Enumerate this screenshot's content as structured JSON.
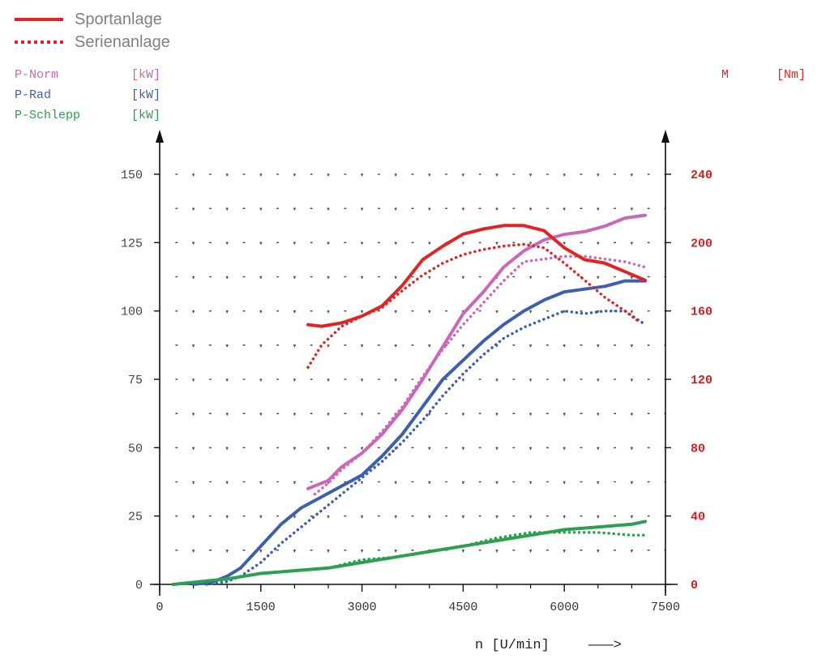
{
  "legend": {
    "solid_label": "Sportanlage",
    "dotted_label": "Serienanlage"
  },
  "labels": {
    "p_norm": "P-Norm",
    "p_norm_unit": "[kW]",
    "p_rad": "P-Rad",
    "p_rad_unit": "[kW]",
    "p_schlepp": "P-Schlepp",
    "p_schlepp_unit": "[kW]",
    "m": "M",
    "m_unit": "[Nm]",
    "xlabel": "n [U/min]",
    "xarrow": "———>"
  },
  "colors": {
    "p_norm": "#cc66bb",
    "p_rad": "#3d5fb0",
    "p_schlepp": "#2aa050",
    "m": "#e02424",
    "legend_text": "#808080"
  },
  "chart_data": {
    "type": "line",
    "xlabel": "n [U/min]",
    "xlim": [
      0,
      7500
    ],
    "ylim_left": [
      0,
      150
    ],
    "ylim_right": [
      0,
      240
    ],
    "x_ticks": [
      "0",
      "1500",
      "3000",
      "4500",
      "6000",
      "7500"
    ],
    "y_ticks_left": [
      "0",
      "25",
      "50",
      "75",
      "100",
      "125",
      "150"
    ],
    "y_ticks_right": [
      "0",
      "40",
      "80",
      "120",
      "160",
      "200",
      "240"
    ],
    "grid": "dotted",
    "series": [
      {
        "name": "P-Norm",
        "variant": "Sportanlage",
        "axis": "left",
        "style": "solid",
        "color": "#cc66bb",
        "x": [
          2200,
          2500,
          2700,
          3000,
          3300,
          3600,
          3900,
          4200,
          4500,
          4800,
          5100,
          5400,
          5700,
          6000,
          6300,
          6600,
          6900,
          7200
        ],
        "y": [
          35,
          38,
          43,
          48,
          55,
          64,
          75,
          87,
          99,
          107,
          116,
          122,
          126,
          128,
          129,
          131,
          134,
          135
        ]
      },
      {
        "name": "P-Norm",
        "variant": "Serienanlage",
        "axis": "left",
        "style": "dotted",
        "color": "#cc66bb",
        "x": [
          2300,
          2500,
          2700,
          3000,
          3300,
          3600,
          3900,
          4200,
          4500,
          4800,
          5100,
          5400,
          5700,
          6000,
          6300,
          6600,
          6900,
          7200
        ],
        "y": [
          33,
          37,
          42,
          48,
          56,
          65,
          76,
          86,
          95,
          103,
          111,
          118,
          119,
          120,
          120,
          119,
          118,
          116
        ]
      },
      {
        "name": "P-Rad",
        "variant": "Sportanlage",
        "axis": "left",
        "style": "solid",
        "color": "#3d5fb0",
        "x": [
          500,
          800,
          1000,
          1200,
          1500,
          1800,
          2100,
          2400,
          2700,
          3000,
          3300,
          3600,
          3900,
          4200,
          4500,
          4800,
          5100,
          5400,
          5700,
          6000,
          6300,
          6600,
          6900,
          7200
        ],
        "y": [
          0,
          1,
          3,
          6,
          14,
          22,
          28,
          32,
          36,
          40,
          47,
          55,
          65,
          75,
          82,
          89,
          95,
          100,
          104,
          107,
          108,
          109,
          111,
          111
        ]
      },
      {
        "name": "P-Rad",
        "variant": "Serienanlage",
        "axis": "left",
        "style": "dotted",
        "color": "#3d5fb0",
        "x": [
          700,
          1000,
          1200,
          1500,
          1800,
          2100,
          2400,
          2700,
          3000,
          3300,
          3600,
          3900,
          4200,
          4500,
          4800,
          5100,
          5400,
          5700,
          6000,
          6300,
          6600,
          6900,
          7200
        ],
        "y": [
          0,
          1,
          3,
          8,
          15,
          21,
          27,
          33,
          39,
          45,
          52,
          60,
          69,
          77,
          84,
          90,
          94,
          97,
          100,
          99,
          100,
          100,
          95
        ]
      },
      {
        "name": "P-Schlepp",
        "variant": "Sportanlage",
        "axis": "left",
        "style": "solid",
        "color": "#2aa050",
        "x": [
          200,
          600,
          1000,
          1500,
          2000,
          2500,
          3000,
          3500,
          4000,
          4500,
          5000,
          5500,
          6000,
          6500,
          7000,
          7200
        ],
        "y": [
          0,
          1,
          2,
          4,
          5,
          6,
          8,
          10,
          12,
          14,
          16,
          18,
          20,
          21,
          22,
          23
        ]
      },
      {
        "name": "P-Schlepp",
        "variant": "Serienanlage",
        "axis": "left",
        "style": "dotted",
        "color": "#2aa050",
        "x": [
          200,
          600,
          1000,
          1500,
          2000,
          2500,
          3000,
          3500,
          4000,
          4500,
          5000,
          5500,
          6000,
          6500,
          7000,
          7200
        ],
        "y": [
          0,
          1,
          2,
          4,
          5,
          6,
          9,
          10,
          12,
          14,
          17,
          19,
          19,
          19,
          18,
          18
        ]
      },
      {
        "name": "M",
        "variant": "Sportanlage",
        "axis": "right",
        "style": "solid",
        "color": "#e02424",
        "x": [
          2200,
          2400,
          2700,
          3000,
          3300,
          3600,
          3900,
          4200,
          4500,
          4800,
          5100,
          5400,
          5700,
          6000,
          6300,
          6600,
          6900,
          7200
        ],
        "y": [
          152,
          151,
          153,
          157,
          163,
          175,
          190,
          198,
          205,
          208,
          210,
          210,
          207,
          197,
          190,
          188,
          183,
          178
        ]
      },
      {
        "name": "M",
        "variant": "Serienanlage",
        "axis": "right",
        "style": "dotted",
        "color": "#e02424",
        "x": [
          2200,
          2400,
          2700,
          3000,
          3300,
          3600,
          3900,
          4200,
          4500,
          4800,
          5100,
          5400,
          5700,
          6000,
          6300,
          6600,
          6900,
          7100
        ],
        "y": [
          127,
          140,
          151,
          157,
          162,
          172,
          181,
          188,
          193,
          196,
          198,
          199,
          197,
          188,
          178,
          168,
          160,
          154
        ]
      }
    ]
  }
}
